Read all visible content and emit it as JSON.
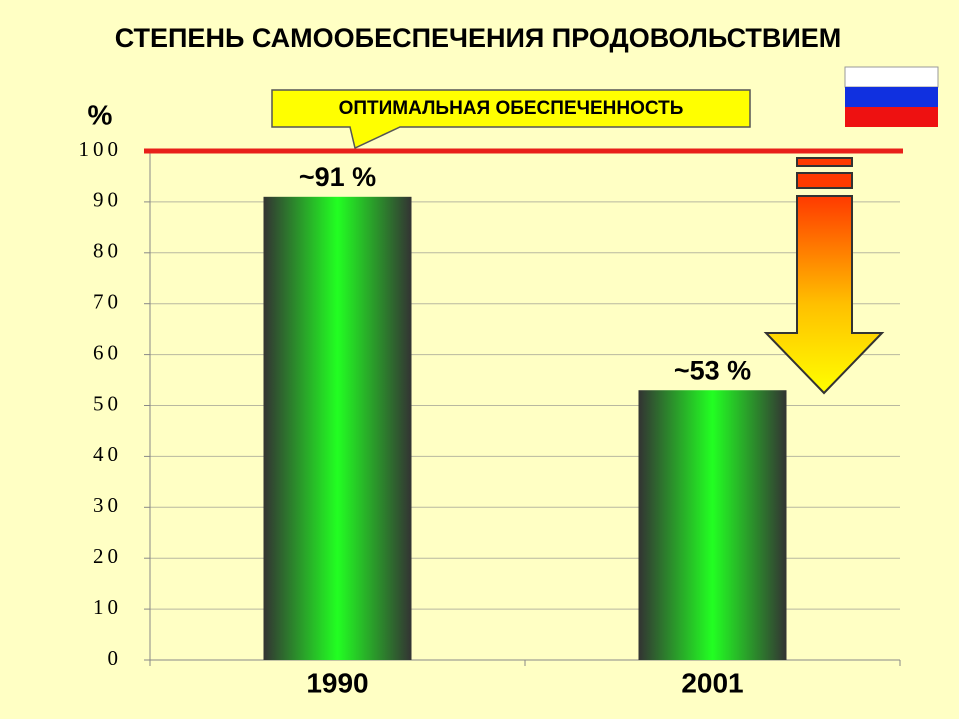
{
  "chart_data": {
    "type": "bar",
    "title": "СТЕПЕНЬ САМООБЕСПЕЧЕНИЯ ПРОДОВОЛЬСТВИЕМ",
    "y_label": "%",
    "categories": [
      "1990",
      "2001"
    ],
    "values": [
      91,
      53
    ],
    "value_labels": [
      "~91 %",
      "~53 %"
    ],
    "color": "#22ff22",
    "ylim": [
      0,
      100
    ],
    "yticks": [
      0,
      10,
      20,
      30,
      40,
      50,
      60,
      70,
      80,
      90,
      100
    ],
    "grid": true,
    "reference_line": {
      "value": 100,
      "label": "ОПТИМАЛЬНАЯ ОБЕСПЕЧЕННОСТЬ",
      "color": "#e8201a"
    }
  }
}
